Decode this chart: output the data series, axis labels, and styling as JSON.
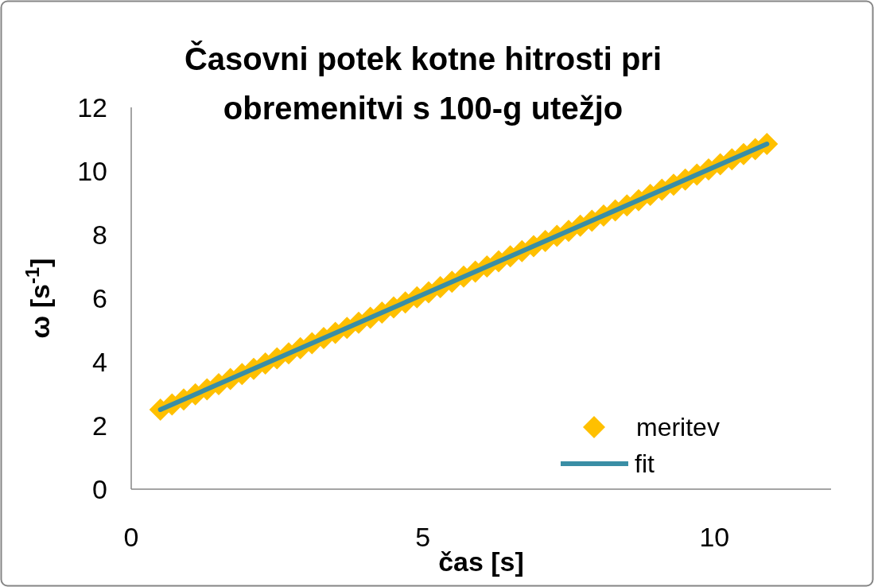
{
  "chart_data": {
    "type": "scatter",
    "title": "Časovni potek kotne hitrosti pri obremenitvi s 100-g utežjo",
    "xlabel": "čas [s]",
    "ylabel": "ω [s$^{-1}$]",
    "xlim": [
      0,
      12
    ],
    "xticks": [
      0,
      5,
      10
    ],
    "ylim": [
      0,
      12
    ],
    "yticks": [
      0,
      2,
      4,
      6,
      8,
      10,
      12
    ],
    "grid": false,
    "legend": "bottom right",
    "series": [
      {
        "name": "meritev",
        "marker": "diamond",
        "color": "#ffc000",
        "x": [
          0.5,
          0.7,
          0.9,
          1.1,
          1.3,
          1.5,
          1.7,
          1.9,
          2.1,
          2.3,
          2.5,
          2.7,
          2.9,
          3.1,
          3.3,
          3.5,
          3.7,
          3.9,
          4.1,
          4.3,
          4.5,
          4.7,
          4.9,
          5.1,
          5.3,
          5.5,
          5.7,
          5.9,
          6.1,
          6.3,
          6.5,
          6.7,
          6.9,
          7.1,
          7.3,
          7.5,
          7.7,
          7.9,
          8.1,
          8.3,
          8.5,
          8.7,
          8.9,
          9.1,
          9.3,
          9.5,
          9.7,
          9.9,
          10.1,
          10.3,
          10.5,
          10.7,
          10.9
        ],
        "values": [
          2.5,
          2.66,
          2.82,
          2.98,
          3.14,
          3.3,
          3.46,
          3.62,
          3.78,
          3.95,
          4.11,
          4.27,
          4.43,
          4.59,
          4.75,
          4.91,
          5.07,
          5.23,
          5.39,
          5.55,
          5.71,
          5.87,
          6.03,
          6.19,
          6.35,
          6.52,
          6.68,
          6.84,
          7.0,
          7.16,
          7.32,
          7.48,
          7.64,
          7.8,
          7.96,
          8.12,
          8.28,
          8.44,
          8.6,
          8.76,
          8.92,
          9.08,
          9.25,
          9.41,
          9.57,
          9.73,
          9.89,
          10.05,
          10.21,
          10.37,
          10.53,
          10.69,
          10.85
        ]
      },
      {
        "name": "fit",
        "type": "line",
        "line_style": "solid",
        "color": "#3a8ea5",
        "x": [
          0.5,
          10.9
        ],
        "values": [
          2.5,
          10.85
        ]
      }
    ]
  }
}
